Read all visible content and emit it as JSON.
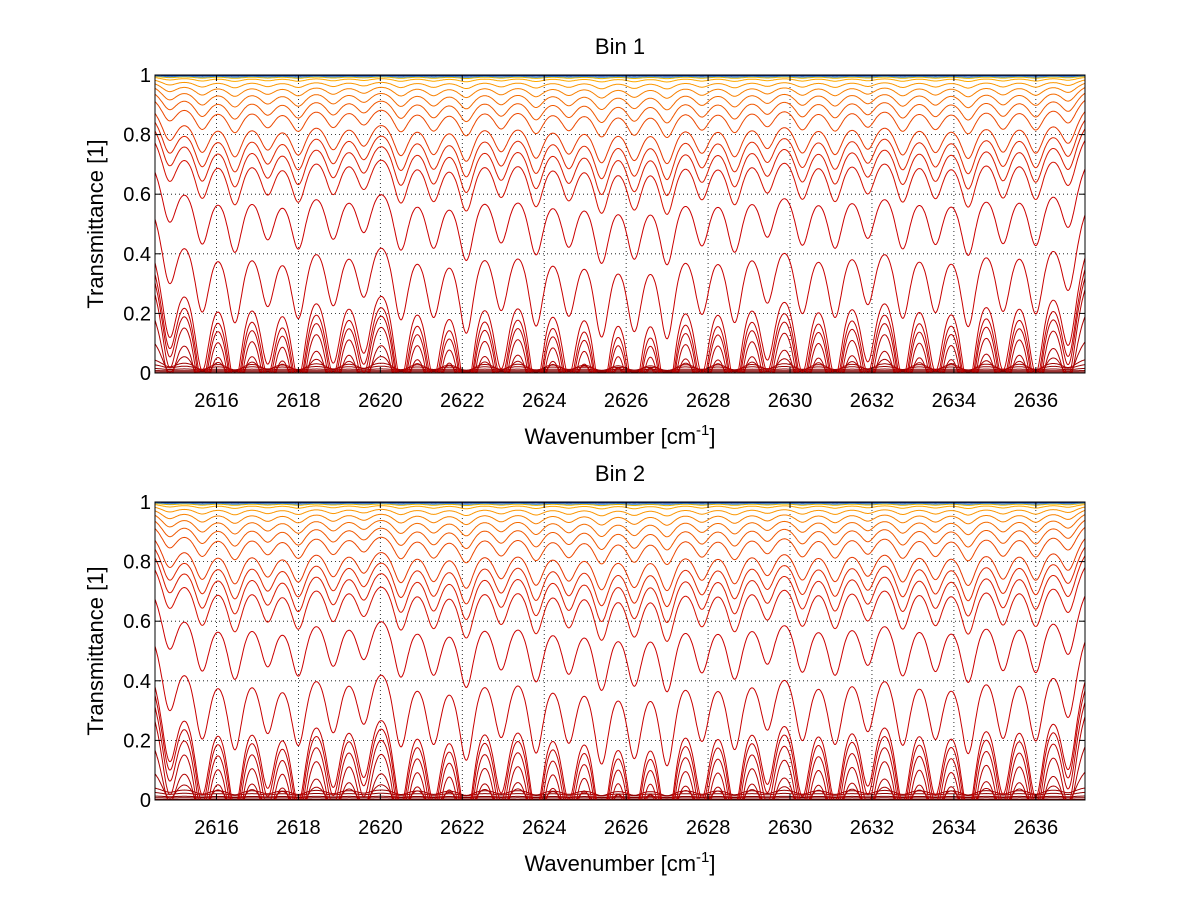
{
  "chart_data": [
    {
      "type": "line",
      "title": "Bin 1",
      "xlabel_main": "Wavenumber [cm",
      "xlabel_sup": "-1",
      "xlabel_tail": "]",
      "ylabel": "Transmittance [1]",
      "xlim": [
        2614.5,
        2637.2
      ],
      "ylim": [
        0,
        1
      ],
      "xticks": [
        2616,
        2618,
        2620,
        2622,
        2624,
        2626,
        2628,
        2630,
        2632,
        2634,
        2636
      ],
      "xtick_labels": [
        "2616",
        "2618",
        "2620",
        "2622",
        "2624",
        "2626",
        "2628",
        "2630",
        "2632",
        "2634",
        "2636"
      ],
      "yticks": [
        0,
        0.2,
        0.4,
        0.6,
        0.8,
        1
      ],
      "ytick_labels": [
        "0",
        "0.2",
        "0.4",
        "0.6",
        "0.8",
        "1"
      ],
      "grid": true,
      "line_positions": [
        2614.85,
        2615.65,
        2616.45,
        2617.25,
        2618.0,
        2618.85,
        2619.6,
        2620.5,
        2621.3,
        2622.1,
        2622.95,
        2623.8,
        2624.6,
        2625.4,
        2626.2,
        2627.0,
        2627.85,
        2628.65,
        2629.45,
        2630.3,
        2631.1,
        2631.9,
        2632.75,
        2633.55,
        2634.35,
        2635.2,
        2636.0,
        2636.8
      ],
      "line_strengths": [
        0.82,
        0.98,
        1.05,
        0.86,
        1.0,
        0.88,
        0.8,
        1.02,
        0.95,
        1.12,
        0.9,
        1.05,
        0.92,
        1.12,
        1.05,
        1.15,
        0.92,
        1.02,
        0.84,
        0.95,
        0.98,
        0.86,
        1.0,
        0.92,
        1.08,
        0.94,
        1.0,
        0.88
      ],
      "series": [
        {
          "name": "curve-01",
          "base": 0.0,
          "depth": 0.0,
          "color": "#7f0000"
        },
        {
          "name": "curve-02",
          "base": 0.004,
          "depth": 0.002,
          "color": "#800000"
        },
        {
          "name": "curve-03",
          "base": 0.009,
          "depth": 0.005,
          "color": "#860000"
        },
        {
          "name": "curve-04",
          "base": 0.018,
          "depth": 0.01,
          "color": "#8e0000"
        },
        {
          "name": "curve-05",
          "base": 0.035,
          "depth": 0.018,
          "color": "#970000"
        },
        {
          "name": "curve-06",
          "base": 0.06,
          "depth": 0.03,
          "color": "#9f0000"
        },
        {
          "name": "curve-07",
          "base": 0.17,
          "depth": 0.09,
          "color": "#a80000"
        },
        {
          "name": "curve-08",
          "base": 0.32,
          "depth": 0.16,
          "color": "#b00000"
        },
        {
          "name": "curve-09",
          "base": 0.45,
          "depth": 0.2,
          "color": "#b80000"
        },
        {
          "name": "curve-10",
          "base": 0.49,
          "depth": 0.2,
          "color": "#bc0000"
        },
        {
          "name": "curve-11",
          "base": 0.52,
          "depth": 0.2,
          "color": "#c00000"
        },
        {
          "name": "curve-12",
          "base": 0.56,
          "depth": 0.2,
          "color": "#c40000"
        },
        {
          "name": "curve-13",
          "base": 0.68,
          "depth": 0.17,
          "color": "#c80000"
        },
        {
          "name": "curve-14",
          "base": 0.8,
          "depth": 0.13,
          "color": "#cc0000"
        },
        {
          "name": "curve-15",
          "base": 0.87,
          "depth": 0.1,
          "color": "#d41000"
        },
        {
          "name": "curve-16",
          "base": 0.9,
          "depth": 0.09,
          "color": "#da1c00"
        },
        {
          "name": "curve-17",
          "base": 0.92,
          "depth": 0.08,
          "color": "#e02800"
        },
        {
          "name": "curve-18",
          "base": 0.94,
          "depth": 0.07,
          "color": "#e63800"
        },
        {
          "name": "curve-19",
          "base": 0.96,
          "depth": 0.05,
          "color": "#ec4800"
        },
        {
          "name": "curve-20",
          "base": 0.975,
          "depth": 0.04,
          "color": "#f05800"
        },
        {
          "name": "curve-21",
          "base": 0.985,
          "depth": 0.03,
          "color": "#f46a00"
        },
        {
          "name": "curve-22",
          "base": 0.99,
          "depth": 0.02,
          "color": "#f88000"
        },
        {
          "name": "curve-23",
          "base": 0.994,
          "depth": 0.012,
          "color": "#fb9600"
        },
        {
          "name": "curve-24",
          "base": 0.997,
          "depth": 0.006,
          "color": "#ffaa00"
        },
        {
          "name": "curve-25",
          "base": 0.998,
          "depth": 0.003,
          "color": "#e6b800"
        },
        {
          "name": "curve-26",
          "base": 0.999,
          "depth": 0.002,
          "color": "#2a7fd4"
        },
        {
          "name": "curve-27",
          "base": 1.0,
          "depth": 0.001,
          "color": "#0a2a8c"
        }
      ]
    },
    {
      "type": "line",
      "title": "Bin 2",
      "xlabel_main": "Wavenumber [cm",
      "xlabel_sup": "-1",
      "xlabel_tail": "]",
      "ylabel": "Transmittance [1]",
      "xlim": [
        2614.5,
        2637.2
      ],
      "ylim": [
        0,
        1
      ],
      "xticks": [
        2616,
        2618,
        2620,
        2622,
        2624,
        2626,
        2628,
        2630,
        2632,
        2634,
        2636
      ],
      "xtick_labels": [
        "2616",
        "2618",
        "2620",
        "2622",
        "2624",
        "2626",
        "2628",
        "2630",
        "2632",
        "2634",
        "2636"
      ],
      "yticks": [
        0,
        0.2,
        0.4,
        0.6,
        0.8,
        1
      ],
      "ytick_labels": [
        "0",
        "0.2",
        "0.4",
        "0.6",
        "0.8",
        "1"
      ],
      "grid": true,
      "line_positions": [
        2614.85,
        2615.65,
        2616.45,
        2617.25,
        2618.0,
        2618.85,
        2619.6,
        2620.5,
        2621.3,
        2622.1,
        2622.95,
        2623.8,
        2624.6,
        2625.4,
        2626.2,
        2627.0,
        2627.85,
        2628.65,
        2629.45,
        2630.3,
        2631.1,
        2631.9,
        2632.75,
        2633.55,
        2634.35,
        2635.2,
        2636.0,
        2636.8
      ],
      "line_strengths": [
        0.82,
        0.98,
        1.05,
        0.86,
        1.0,
        0.88,
        0.8,
        1.02,
        0.95,
        1.12,
        0.9,
        1.05,
        0.92,
        1.12,
        1.05,
        1.15,
        0.92,
        1.02,
        0.84,
        0.95,
        0.98,
        0.86,
        1.0,
        0.92,
        1.08,
        0.94,
        1.0,
        0.88
      ],
      "series": [
        {
          "name": "curve-01",
          "base": 0.002,
          "depth": 0.0,
          "color": "#7f0000"
        },
        {
          "name": "curve-02",
          "base": 0.008,
          "depth": 0.003,
          "color": "#800000"
        },
        {
          "name": "curve-03",
          "base": 0.015,
          "depth": 0.007,
          "color": "#860000"
        },
        {
          "name": "curve-04",
          "base": 0.03,
          "depth": 0.012,
          "color": "#8e0000"
        },
        {
          "name": "curve-05",
          "base": 0.05,
          "depth": 0.02,
          "color": "#970000"
        },
        {
          "name": "curve-06",
          "base": 0.15,
          "depth": 0.08,
          "color": "#a80000"
        },
        {
          "name": "curve-07",
          "base": 0.3,
          "depth": 0.15,
          "color": "#b00000"
        },
        {
          "name": "curve-08",
          "base": 0.45,
          "depth": 0.2,
          "color": "#b80000"
        },
        {
          "name": "curve-09",
          "base": 0.5,
          "depth": 0.2,
          "color": "#bc0000"
        },
        {
          "name": "curve-10",
          "base": 0.54,
          "depth": 0.2,
          "color": "#c00000"
        },
        {
          "name": "curve-11",
          "base": 0.57,
          "depth": 0.2,
          "color": "#c40000"
        },
        {
          "name": "curve-12",
          "base": 0.68,
          "depth": 0.17,
          "color": "#c80000"
        },
        {
          "name": "curve-13",
          "base": 0.8,
          "depth": 0.13,
          "color": "#cc0000"
        },
        {
          "name": "curve-14",
          "base": 0.87,
          "depth": 0.1,
          "color": "#d41000"
        },
        {
          "name": "curve-15",
          "base": 0.9,
          "depth": 0.09,
          "color": "#da1c00"
        },
        {
          "name": "curve-16",
          "base": 0.92,
          "depth": 0.08,
          "color": "#e02800"
        },
        {
          "name": "curve-17",
          "base": 0.94,
          "depth": 0.07,
          "color": "#e63800"
        },
        {
          "name": "curve-18",
          "base": 0.96,
          "depth": 0.05,
          "color": "#ec4800"
        },
        {
          "name": "curve-19",
          "base": 0.975,
          "depth": 0.04,
          "color": "#f05800"
        },
        {
          "name": "curve-20",
          "base": 0.985,
          "depth": 0.03,
          "color": "#f46a00"
        },
        {
          "name": "curve-21",
          "base": 0.99,
          "depth": 0.02,
          "color": "#f88000"
        },
        {
          "name": "curve-22",
          "base": 0.994,
          "depth": 0.012,
          "color": "#fb9600"
        },
        {
          "name": "curve-23",
          "base": 0.997,
          "depth": 0.006,
          "color": "#ffaa00"
        },
        {
          "name": "curve-24",
          "base": 0.998,
          "depth": 0.003,
          "color": "#e6b800"
        },
        {
          "name": "curve-25",
          "base": 0.999,
          "depth": 0.002,
          "color": "#2a7fd4"
        },
        {
          "name": "curve-26",
          "base": 1.0,
          "depth": 0.001,
          "color": "#0a2a8c"
        }
      ]
    }
  ]
}
